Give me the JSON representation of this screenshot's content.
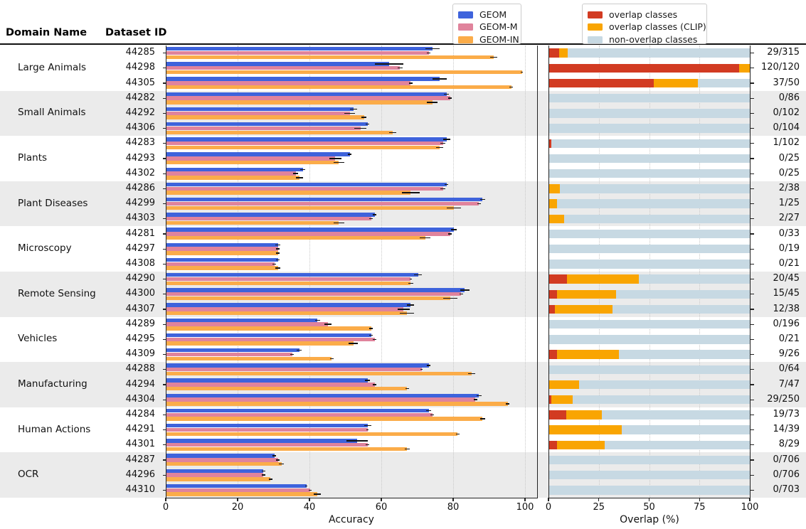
{
  "header": {
    "domain_col": "Domain Name",
    "dataset_col": "Dataset ID"
  },
  "legend_left": {
    "items": [
      {
        "label": "GEOM",
        "color": "#3e63dc"
      },
      {
        "label": "GEOM-M",
        "color": "#e0839c"
      },
      {
        "label": "GEOM-IN",
        "color": "#fbac49"
      }
    ]
  },
  "legend_right": {
    "items": [
      {
        "label": "overlap classes",
        "color": "#d23b22"
      },
      {
        "label": "overlap classes (CLIP)",
        "color": "#f9a502"
      },
      {
        "label": "non-overlap classes",
        "color": "#c7d9e3"
      }
    ]
  },
  "colors": {
    "geom": "#3e63dc",
    "geom_m": "#e0839c",
    "geom_in": "#fbac49",
    "overlap": "#d23b22",
    "overlap_clip": "#f9a502",
    "non_overlap": "#c7d9e3",
    "band_shade": "#ebebeb",
    "spine": "#222222",
    "grid": "#c9c9c9"
  },
  "chart_data": {
    "type": "bar",
    "orientation": "horizontal",
    "subplots": [
      {
        "name": "accuracy",
        "xlabel": "Accuracy",
        "xticks": [
          0,
          20,
          40,
          60,
          80,
          100
        ],
        "xlim": [
          0,
          104
        ],
        "grid": "dotted-vertical",
        "series_names": [
          "GEOM",
          "GEOM-M",
          "GEOM-IN"
        ]
      },
      {
        "name": "overlap",
        "xlabel": "Overlap (%)",
        "xticks": [
          0,
          25,
          50,
          75,
          100
        ],
        "xlim": [
          0,
          100
        ],
        "grid": "dotted-vertical",
        "stack_names": [
          "overlap classes",
          "overlap classes (CLIP)",
          "non-overlap classes"
        ]
      }
    ],
    "groups": [
      {
        "domain": "Large Animals",
        "shaded": false,
        "rows": [
          {
            "id": "44285",
            "accuracy": [
              74,
              73,
              91
            ],
            "acc_err": [
              2,
              0.5,
              1
            ],
            "overlap": [
              4.8,
              4.4
            ],
            "ratio": "29/315"
          },
          {
            "id": "44298",
            "accuracy": [
              62,
              65,
              99
            ],
            "acc_err": [
              4,
              0.7,
              0.3
            ],
            "overlap": [
              94.5,
              5.5
            ],
            "ratio": "120/120"
          },
          {
            "id": "44305",
            "accuracy": [
              76,
              68,
              96
            ],
            "acc_err": [
              2,
              0.5,
              0.5
            ],
            "overlap": [
              52,
              22
            ],
            "ratio": "37/50"
          }
        ]
      },
      {
        "domain": "Small Animals",
        "shaded": true,
        "rows": [
          {
            "id": "44282",
            "accuracy": [
              78,
              79,
              74
            ],
            "acc_err": [
              0.7,
              0.5,
              1.5
            ],
            "overlap": [
              0,
              0
            ],
            "ratio": "0/86"
          },
          {
            "id": "44292",
            "accuracy": [
              52,
              51,
              55
            ],
            "acc_err": [
              1,
              1.5,
              0.7
            ],
            "overlap": [
              0,
              0
            ],
            "ratio": "0/102"
          },
          {
            "id": "44306",
            "accuracy": [
              56,
              54,
              63
            ],
            "acc_err": [
              0.5,
              1.7,
              1
            ],
            "overlap": [
              0,
              0
            ],
            "ratio": "0/104"
          }
        ]
      },
      {
        "domain": "Plants",
        "shaded": false,
        "rows": [
          {
            "id": "44283",
            "accuracy": [
              78,
              77,
              76
            ],
            "acc_err": [
              1,
              0.7,
              1
            ],
            "overlap": [
              1,
              0
            ],
            "ratio": "1/102"
          },
          {
            "id": "44293",
            "accuracy": [
              51,
              47,
              48
            ],
            "acc_err": [
              0.5,
              1.7,
              1.5
            ],
            "overlap": [
              0,
              0
            ],
            "ratio": "0/25"
          },
          {
            "id": "44302",
            "accuracy": [
              38,
              36,
              37
            ],
            "acc_err": [
              0.7,
              0.7,
              1
            ],
            "overlap": [
              0,
              0
            ],
            "ratio": "0/25"
          }
        ]
      },
      {
        "domain": "Plant Diseases",
        "shaded": true,
        "rows": [
          {
            "id": "44286",
            "accuracy": [
              78,
              77,
              68
            ],
            "acc_err": [
              0.5,
              0.7,
              2.5
            ],
            "overlap": [
              0,
              5.3
            ],
            "ratio": "2/38"
          },
          {
            "id": "44299",
            "accuracy": [
              88,
              87,
              80
            ],
            "acc_err": [
              0.7,
              0.5,
              2
            ],
            "overlap": [
              0,
              4
            ],
            "ratio": "1/25"
          },
          {
            "id": "44303",
            "accuracy": [
              58,
              57,
              48
            ],
            "acc_err": [
              0.5,
              0.5,
              1.5
            ],
            "overlap": [
              0,
              7.4
            ],
            "ratio": "2/27"
          }
        ]
      },
      {
        "domain": "Microscopy",
        "shaded": false,
        "rows": [
          {
            "id": "44281",
            "accuracy": [
              80,
              79,
              72
            ],
            "acc_err": [
              0.7,
              0.5,
              1.5
            ],
            "overlap": [
              0,
              0
            ],
            "ratio": "0/33"
          },
          {
            "id": "44297",
            "accuracy": [
              31,
              31,
              31
            ],
            "acc_err": [
              0.7,
              0.5,
              0.5
            ],
            "overlap": [
              0,
              0
            ],
            "ratio": "0/19"
          },
          {
            "id": "44308",
            "accuracy": [
              31,
              30,
              31
            ],
            "acc_err": [
              0.5,
              0.5,
              0.7
            ],
            "overlap": [
              0,
              0
            ],
            "ratio": "0/21"
          }
        ]
      },
      {
        "domain": "Remote Sensing",
        "shaded": true,
        "rows": [
          {
            "id": "44290",
            "accuracy": [
              70,
              68,
              68
            ],
            "acc_err": [
              1,
              0.3,
              0.7
            ],
            "overlap": [
              9,
              35.4
            ],
            "ratio": "20/45"
          },
          {
            "id": "44300",
            "accuracy": [
              83,
              82,
              79
            ],
            "acc_err": [
              1.3,
              0.5,
              2
            ],
            "overlap": [
              4,
              29.3
            ],
            "ratio": "15/45"
          },
          {
            "id": "44307",
            "accuracy": [
              68,
              66,
              67
            ],
            "acc_err": [
              1,
              1.7,
              2
            ],
            "overlap": [
              2.7,
              28.9
            ],
            "ratio": "12/38"
          }
        ]
      },
      {
        "domain": "Vehicles",
        "shaded": false,
        "rows": [
          {
            "id": "44289",
            "accuracy": [
              42,
              45,
              57
            ],
            "acc_err": [
              0.7,
              1,
              0.5
            ],
            "overlap": [
              0,
              0
            ],
            "ratio": "0/196"
          },
          {
            "id": "44295",
            "accuracy": [
              57,
              58,
              52
            ],
            "acc_err": [
              0.5,
              0.5,
              1.3
            ],
            "overlap": [
              0,
              0
            ],
            "ratio": "0/21"
          },
          {
            "id": "44309",
            "accuracy": [
              37,
              35,
              46
            ],
            "acc_err": [
              0.7,
              0.5,
              0.5
            ],
            "overlap": [
              4,
              30.6
            ],
            "ratio": "9/26"
          }
        ]
      },
      {
        "domain": "Manufacturing",
        "shaded": true,
        "rows": [
          {
            "id": "44288",
            "accuracy": [
              73,
              71,
              85
            ],
            "acc_err": [
              0.5,
              0.3,
              1
            ],
            "overlap": [
              0,
              0
            ],
            "ratio": "0/64"
          },
          {
            "id": "44294",
            "accuracy": [
              56,
              58,
              67
            ],
            "acc_err": [
              0.7,
              0.5,
              0.5
            ],
            "overlap": [
              0,
              14.9
            ],
            "ratio": "7/47"
          },
          {
            "id": "44304",
            "accuracy": [
              87,
              86,
              95
            ],
            "acc_err": [
              0.7,
              0.5,
              0.5
            ],
            "overlap": [
              1.2,
              10.4
            ],
            "ratio": "29/250"
          }
        ]
      },
      {
        "domain": "Human Actions",
        "shaded": false,
        "rows": [
          {
            "id": "44284",
            "accuracy": [
              73,
              74,
              88
            ],
            "acc_err": [
              0.7,
              0.5,
              0.7
            ],
            "overlap": [
              8.5,
              17.5
            ],
            "ratio": "19/73"
          },
          {
            "id": "44291",
            "accuracy": [
              56,
              56,
              81
            ],
            "acc_err": [
              1,
              0.3,
              0.5
            ],
            "overlap": [
              0,
              35.9
            ],
            "ratio": "14/39"
          },
          {
            "id": "44301",
            "accuracy": [
              53,
              56,
              67
            ],
            "acc_err": [
              3,
              0.5,
              0.7
            ],
            "overlap": [
              4,
              23.6
            ],
            "ratio": "8/29"
          }
        ]
      },
      {
        "domain": "OCR",
        "shaded": true,
        "rows": [
          {
            "id": "44287",
            "accuracy": [
              30,
              31,
              32
            ],
            "acc_err": [
              0.5,
              0.5,
              0.7
            ],
            "overlap": [
              0,
              0
            ],
            "ratio": "0/706"
          },
          {
            "id": "44296",
            "accuracy": [
              27,
              27,
              29
            ],
            "acc_err": [
              0.5,
              0.5,
              0.5
            ],
            "overlap": [
              0,
              0
            ],
            "ratio": "0/706"
          },
          {
            "id": "44310",
            "accuracy": [
              39,
              40,
              42
            ],
            "acc_err": [
              0.3,
              0.3,
              1
            ],
            "overlap": [
              0,
              0
            ],
            "ratio": "0/703"
          }
        ]
      }
    ]
  }
}
